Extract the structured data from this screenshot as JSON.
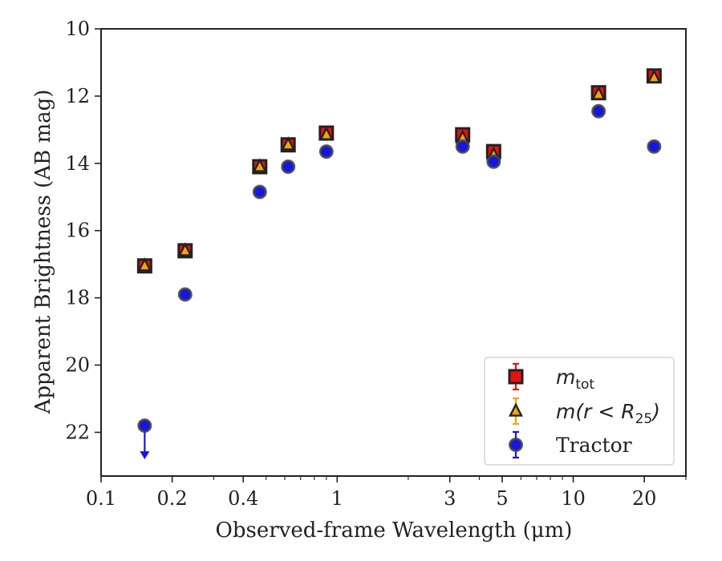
{
  "chart_data": {
    "type": "scatter",
    "xlabel": "Observed-frame Wavelength (μm)",
    "ylabel": "Apparent Brightness (AB mag)",
    "xscale": "log",
    "xlim": [
      0.1,
      30
    ],
    "ylim": [
      23.3,
      10
    ],
    "y_inverted": true,
    "grid": false,
    "legend_position": "lower-right",
    "x_ticks": [
      0.1,
      0.2,
      0.4,
      1,
      3,
      5,
      10,
      20
    ],
    "x_tick_labels": [
      "0.1",
      "0.2",
      "0.4",
      "1",
      "3",
      "5",
      "10",
      "20"
    ],
    "y_ticks": [
      10,
      12,
      14,
      16,
      18,
      20,
      22
    ],
    "y_tick_labels": [
      "10",
      "12",
      "14",
      "16",
      "18",
      "20",
      "22"
    ],
    "series": [
      {
        "name": "m_tot",
        "legend_main": "m",
        "legend_sub": "tot",
        "marker": "square",
        "color": "#e8110e",
        "x": [
          0.153,
          0.227,
          0.47,
          0.62,
          0.9,
          3.4,
          4.6,
          12.8,
          22.0
        ],
        "y": [
          17.05,
          16.6,
          14.1,
          13.45,
          13.1,
          13.15,
          13.65,
          11.9,
          11.4
        ]
      },
      {
        "name": "m(r < R_25)",
        "legend_main": "m(r < R",
        "legend_sub": "25",
        "legend_close": ")",
        "marker": "triangle",
        "color": "#f5a30a",
        "x": [
          0.153,
          0.227,
          0.47,
          0.62,
          0.9,
          3.4,
          4.6,
          12.8,
          22.0
        ],
        "y": [
          17.05,
          16.6,
          14.1,
          13.45,
          13.15,
          13.25,
          13.75,
          11.95,
          11.45
        ]
      },
      {
        "name": "Tractor",
        "legend_main": "Tractor",
        "marker": "circle",
        "color": "#1515e6",
        "x": [
          0.153,
          0.227,
          0.47,
          0.62,
          0.9,
          3.4,
          4.6,
          12.8,
          22.0
        ],
        "y": [
          21.8,
          17.9,
          14.85,
          14.1,
          13.65,
          13.5,
          13.95,
          12.45,
          13.5
        ],
        "upper_limit_x": [
          0.153
        ]
      }
    ]
  }
}
